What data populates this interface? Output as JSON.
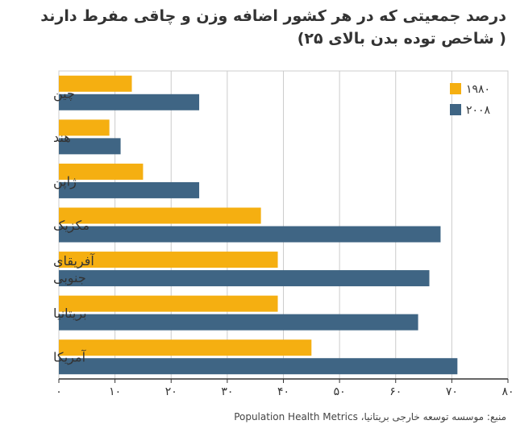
{
  "title_line1": "درصد جمعیتی که در هر کشور اضافه وزن و چاقی مفرط دارند",
  "title_line2": "( شاخص توده بدن بالای ۲۵)",
  "source": "منبع: موسسه توسعه خارجی بریتانیا، Population Health Metrics",
  "colors": {
    "s1980": "#F5AF11",
    "s2008": "#3F6584",
    "grid": "#cccccc",
    "axis": "#333333"
  },
  "chart_data": {
    "type": "bar",
    "orientation": "horizontal",
    "categories": [
      "چین",
      "هند",
      "ژاپن",
      "مکزیک",
      "آفریقای جنوبی",
      "بریتانیا",
      "آمریکا"
    ],
    "category_lines": [
      [
        "چین"
      ],
      [
        "هند"
      ],
      [
        "ژاپن"
      ],
      [
        "مکزیک"
      ],
      [
        "آفریقای",
        "جنوبی"
      ],
      [
        "بریتانیا"
      ],
      [
        "آمریکا"
      ]
    ],
    "series": [
      {
        "name": "۱۹۸۰",
        "values": [
          13,
          9,
          15,
          36,
          39,
          39,
          45
        ]
      },
      {
        "name": "۲۰۰۸",
        "values": [
          25,
          11,
          25,
          68,
          66,
          64,
          71
        ]
      }
    ],
    "xlim": [
      0,
      80
    ],
    "ticks": [
      0,
      10,
      20,
      30,
      40,
      50,
      60,
      70,
      80
    ],
    "tick_labels": [
      "۰",
      "۱۰",
      "۲۰",
      "۳۰",
      "۴۰",
      "۵۰",
      "۶۰",
      "۷۰",
      "۸۰"
    ],
    "grid": true,
    "legend": "top-right"
  }
}
